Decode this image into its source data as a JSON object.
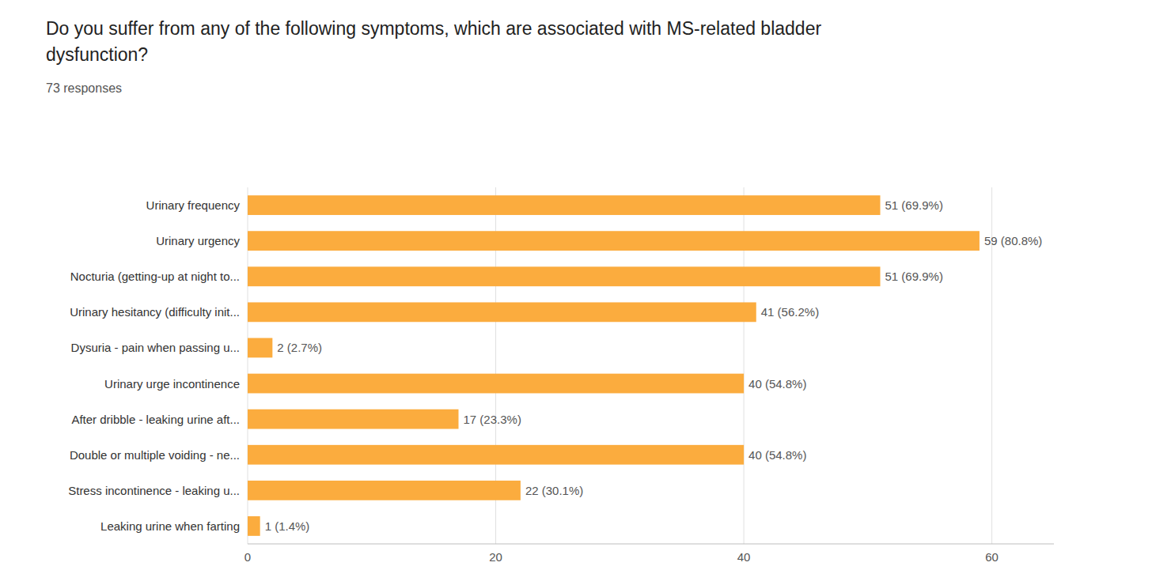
{
  "chart_data": {
    "type": "bar",
    "orientation": "horizontal",
    "title": "Do you suffer from any of the following symptoms, which are associated with MS-related bladder dysfunction?",
    "subtitle": "73 responses",
    "categories": [
      "Leaking urine when farting",
      "Stress incontinence - leaking u...",
      "Double or multiple voiding - ne...",
      "After dribble - leaking urine aft...",
      "Urinary urge incontinence",
      "Dysuria - pain when passing u...",
      "Urinary hesitancy (difficulty init...",
      "Nocturia (getting-up at night to...",
      "Urinary urgency",
      "Urinary frequency"
    ],
    "values": [
      1,
      22,
      40,
      17,
      40,
      2,
      41,
      51,
      59,
      51
    ],
    "value_labels": [
      "1 (1.4%)",
      "22 (30.1%)",
      "40 (54.8%)",
      "17 (23.3%)",
      "40 (54.8%)",
      "2 (2.7%)",
      "41 (56.2%)",
      "51 (69.9%)",
      "59 (80.8%)",
      "51 (69.9%)"
    ],
    "data_labels": true,
    "color": "#FBAC3E",
    "xlim": [
      0,
      65
    ],
    "xticks": [
      0,
      20,
      40,
      60
    ],
    "grid": true
  }
}
